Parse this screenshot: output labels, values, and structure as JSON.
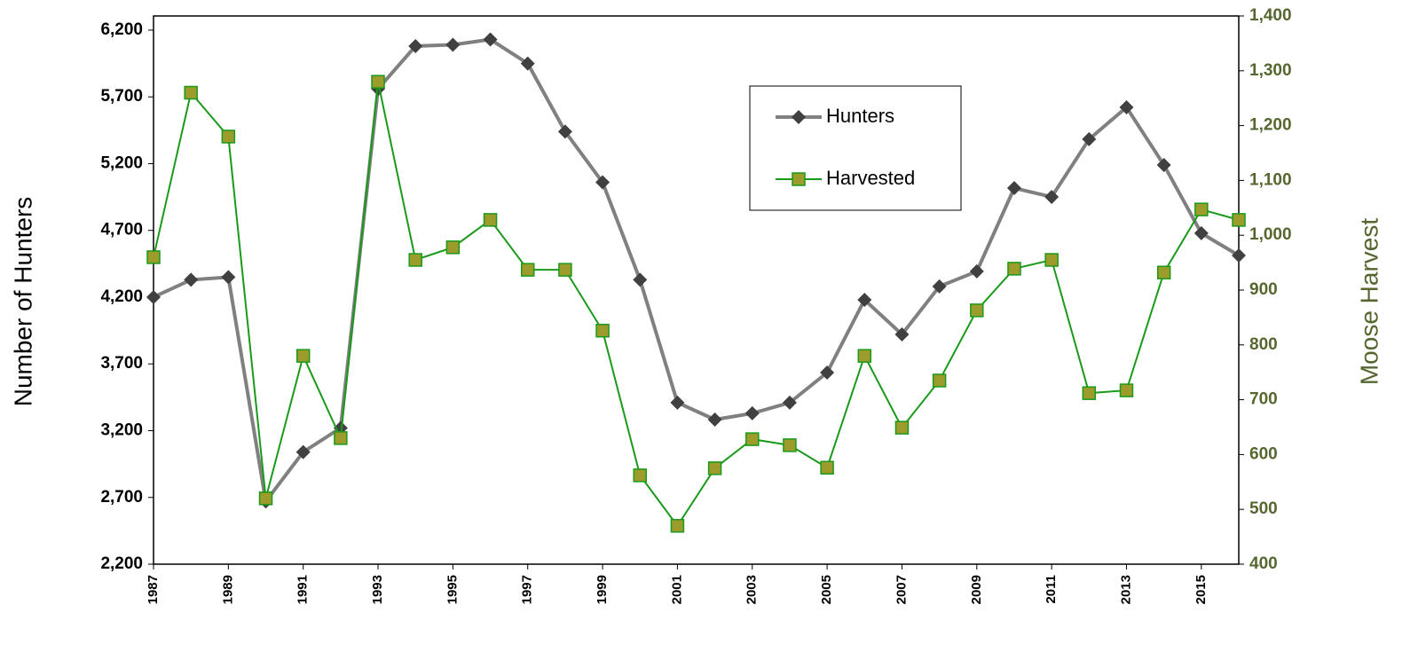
{
  "chart_data": {
    "type": "line",
    "y_label": "Number of  Hunters",
    "y2_label": "Moose  Harvest",
    "x": [
      1987,
      1988,
      1989,
      1990,
      1991,
      1992,
      1993,
      1994,
      1995,
      1996,
      1997,
      1998,
      1999,
      2000,
      2001,
      2002,
      2003,
      2004,
      2005,
      2006,
      2007,
      2008,
      2009,
      2010,
      2011,
      2012,
      2013,
      2014,
      2015,
      2016
    ],
    "xlim": [
      1987,
      2016
    ],
    "xticks": [
      1987,
      1989,
      1991,
      1993,
      1995,
      1997,
      1999,
      2001,
      2003,
      2005,
      2007,
      2009,
      2011,
      2013,
      2015
    ],
    "ylim": [
      2200,
      6306
    ],
    "yticks": [
      {
        "value": 2200,
        "label": "2,200"
      },
      {
        "value": 2700,
        "label": "2,700"
      },
      {
        "value": 3200,
        "label": "3,200"
      },
      {
        "value": 3700,
        "label": "3,700"
      },
      {
        "value": 4200,
        "label": "4,200"
      },
      {
        "value": 4700,
        "label": "4,700"
      },
      {
        "value": 5200,
        "label": "5,200"
      },
      {
        "value": 5700,
        "label": "5,700"
      },
      {
        "value": 6200,
        "label": "6,200"
      }
    ],
    "y2lim": [
      400,
      1400
    ],
    "y2ticks": [
      400,
      500,
      600,
      700,
      800,
      900,
      {
        "value": 1000,
        "label": "1,000"
      },
      {
        "value": 1100,
        "label": "1,100"
      },
      {
        "value": 1200,
        "label": "1,200"
      },
      {
        "value": 1300,
        "label": "1,300"
      },
      {
        "value": 1400,
        "label": "1,400"
      }
    ],
    "series": [
      {
        "name": "Hunters",
        "color": "#808080",
        "marker_color": "#404040",
        "marker": "diamond",
        "values": [
          4200,
          4330,
          4350,
          2670,
          3040,
          3220,
          5760,
          6080,
          6090,
          6130,
          5950,
          5440,
          5060,
          4330,
          3410,
          3283,
          3330,
          3410,
          3635,
          4180,
          3921,
          4280,
          4393,
          5017,
          4951,
          5383,
          5622,
          5190,
          4679,
          4512
        ]
      },
      {
        "name": "Harvested",
        "color": "#1a9a1a",
        "marker_color": "#9c9c2c",
        "marker": "square",
        "axis": "y2",
        "values": [
          960,
          1260,
          1180,
          520,
          780,
          630,
          1280,
          955,
          978,
          1028,
          937,
          937,
          826,
          562,
          470,
          575,
          628,
          617,
          576,
          780,
          649,
          735,
          863,
          939,
          955,
          712,
          717,
          932,
          1047,
          1028
        ]
      }
    ]
  }
}
